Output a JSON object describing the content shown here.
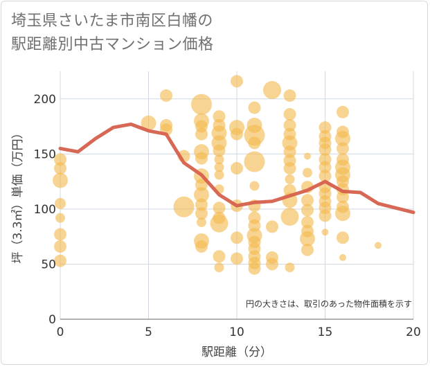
{
  "title_lines": [
    "埼玉県さいたま市南区白幡の",
    "駅距離別中古マンション価格"
  ],
  "chart_data": {
    "type": "scatter",
    "xlabel": "駅距離（分）",
    "ylabel": "坪（3.3㎡）単価（万円）",
    "xlim": [
      0,
      20
    ],
    "ylim": [
      0,
      225
    ],
    "xticks": [
      0,
      5,
      10,
      15,
      20
    ],
    "yticks": [
      0,
      50,
      100,
      150,
      200
    ],
    "grid": true,
    "note": "円の大きさは、取引のあった物件面積を示す",
    "colors": {
      "bubble": "#f3b94f",
      "line": "#d6604d",
      "grid": "#cfd8e3",
      "plot_bg": "#ffffff"
    },
    "series": [
      {
        "type": "line",
        "x": [
          0,
          1,
          2,
          3,
          4,
          5,
          6,
          7,
          8,
          9,
          10,
          11,
          12,
          13,
          14,
          15,
          16,
          17,
          18,
          19,
          20
        ],
        "y": [
          155,
          152,
          164,
          174,
          177,
          171,
          168,
          142,
          131,
          113,
          103,
          106,
          107,
          112,
          117,
          125,
          116,
          115,
          105,
          101,
          97
        ]
      },
      {
        "type": "bubble",
        "points": [
          [
            0,
            145,
            9
          ],
          [
            0,
            137,
            9
          ],
          [
            0,
            126,
            11
          ],
          [
            0,
            105,
            8
          ],
          [
            0,
            92,
            7
          ],
          [
            0,
            77,
            9
          ],
          [
            0,
            66,
            9
          ],
          [
            0,
            53,
            9
          ],
          [
            5,
            178,
            11
          ],
          [
            6,
            203,
            9
          ],
          [
            6,
            176,
            9
          ],
          [
            6,
            172,
            9
          ],
          [
            7,
            148,
            9
          ],
          [
            7,
            102,
            15
          ],
          [
            8,
            195,
            15
          ],
          [
            8,
            180,
            11
          ],
          [
            8,
            175,
            9
          ],
          [
            8,
            168,
            9
          ],
          [
            8,
            152,
            11
          ],
          [
            8,
            146,
            9
          ],
          [
            8,
            130,
            11
          ],
          [
            8,
            122,
            9
          ],
          [
            8,
            113,
            11
          ],
          [
            8,
            104,
            9
          ],
          [
            8,
            96,
            9
          ],
          [
            8,
            88,
            7
          ],
          [
            8,
            71,
            11
          ],
          [
            8,
            66,
            9
          ],
          [
            9,
            184,
            9
          ],
          [
            9,
            176,
            9
          ],
          [
            9,
            169,
            11
          ],
          [
            9,
            160,
            11
          ],
          [
            9,
            153,
            9
          ],
          [
            9,
            145,
            7
          ],
          [
            9,
            138,
            7
          ],
          [
            9,
            131,
            7
          ],
          [
            9,
            118,
            7
          ],
          [
            9,
            101,
            9
          ],
          [
            9,
            92,
            9
          ],
          [
            9,
            87,
            13
          ],
          [
            9,
            57,
            9
          ],
          [
            9,
            47,
            7
          ],
          [
            10,
            216,
            9
          ],
          [
            10,
            174,
            11
          ],
          [
            10,
            168,
            9
          ],
          [
            10,
            137,
            9
          ],
          [
            10,
            103,
            9
          ],
          [
            10,
            74,
            9
          ],
          [
            10,
            55,
            9
          ],
          [
            11,
            192,
            9
          ],
          [
            11,
            176,
            11
          ],
          [
            11,
            167,
            15
          ],
          [
            11,
            160,
            9
          ],
          [
            11,
            143,
            15
          ],
          [
            11,
            121,
            7
          ],
          [
            11,
            103,
            9
          ],
          [
            11,
            92,
            9
          ],
          [
            11,
            85,
            9
          ],
          [
            11,
            76,
            11
          ],
          [
            11,
            70,
            9
          ],
          [
            11,
            64,
            9
          ],
          [
            11,
            57,
            9
          ],
          [
            11,
            51,
            9
          ],
          [
            11,
            46,
            9
          ],
          [
            12,
            208,
            13
          ],
          [
            12,
            84,
            9
          ],
          [
            12,
            56,
            9
          ],
          [
            12,
            50,
            9
          ],
          [
            13,
            203,
            9
          ],
          [
            13,
            186,
            9
          ],
          [
            13,
            176,
            9
          ],
          [
            13,
            168,
            9
          ],
          [
            13,
            160,
            11
          ],
          [
            13,
            152,
            9
          ],
          [
            13,
            144,
            9
          ],
          [
            13,
            137,
            9
          ],
          [
            13,
            127,
            7
          ],
          [
            13,
            117,
            9
          ],
          [
            13,
            108,
            11
          ],
          [
            13,
            93,
            13
          ],
          [
            13,
            47,
            7
          ],
          [
            14,
            148,
            5
          ],
          [
            14,
            133,
            7
          ],
          [
            14,
            120,
            9
          ],
          [
            14,
            108,
            9
          ],
          [
            14,
            99,
            9
          ],
          [
            14,
            88,
            9
          ],
          [
            14,
            80,
            9
          ],
          [
            14,
            73,
            11
          ],
          [
            14,
            63,
            9
          ],
          [
            15,
            174,
            9
          ],
          [
            15,
            166,
            9
          ],
          [
            15,
            160,
            9
          ],
          [
            15,
            154,
            9
          ],
          [
            15,
            145,
            9
          ],
          [
            15,
            138,
            9
          ],
          [
            15,
            130,
            9
          ],
          [
            15,
            120,
            9
          ],
          [
            15,
            114,
            9
          ],
          [
            15,
            107,
            9
          ],
          [
            15,
            101,
            9
          ],
          [
            15,
            94,
            9
          ],
          [
            15,
            79,
            5
          ],
          [
            16,
            188,
            9
          ],
          [
            16,
            170,
            9
          ],
          [
            16,
            164,
            11
          ],
          [
            16,
            155,
            9
          ],
          [
            16,
            145,
            9
          ],
          [
            16,
            138,
            11
          ],
          [
            16,
            131,
            11
          ],
          [
            16,
            125,
            9
          ],
          [
            16,
            118,
            9
          ],
          [
            16,
            111,
            9
          ],
          [
            16,
            102,
            9
          ],
          [
            16,
            96,
            11
          ],
          [
            16,
            74,
            9
          ],
          [
            16,
            56,
            5
          ],
          [
            18,
            67,
            5
          ]
        ]
      }
    ]
  }
}
